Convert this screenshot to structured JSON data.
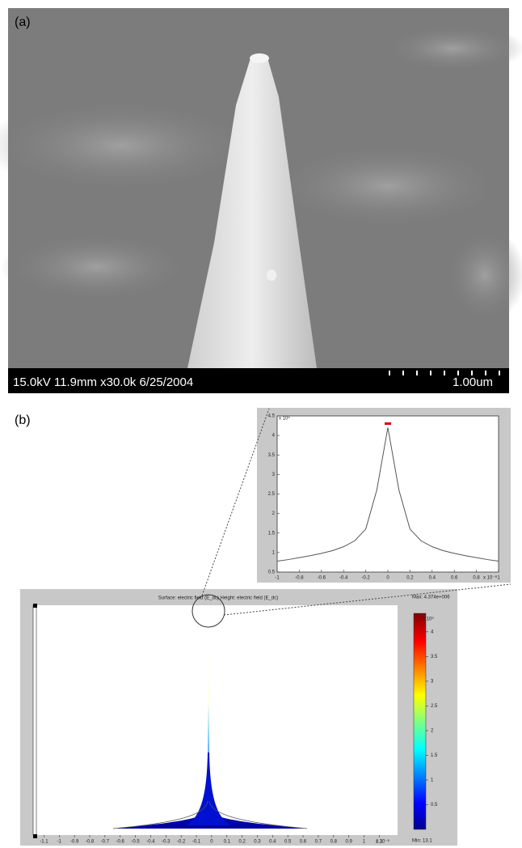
{
  "panel_a": {
    "label": "(a)",
    "info": "15.0kV 11.9mm x30.0k 6/25/2004",
    "scale": "1.00um"
  },
  "panel_b": {
    "label": "(b)",
    "inset": {
      "type": "line",
      "x": [
        -1,
        -0.9,
        -0.8,
        -0.7,
        -0.6,
        -0.5,
        -0.4,
        -0.3,
        -0.2,
        -0.1,
        0,
        0.1,
        0.2,
        0.3,
        0.4,
        0.5,
        0.6,
        0.7,
        0.8,
        0.9,
        1
      ],
      "values": [
        0.78,
        0.82,
        0.87,
        0.92,
        0.98,
        1.05,
        1.15,
        1.3,
        1.6,
        2.6,
        4.2,
        2.6,
        1.6,
        1.3,
        1.15,
        1.05,
        0.98,
        0.92,
        0.87,
        0.82,
        0.78
      ],
      "color": "#555555",
      "xlim": [
        -1,
        1
      ],
      "ylim": [
        0.5,
        4.5
      ],
      "xticks": [
        -1,
        -0.8,
        -0.6,
        -0.4,
        -0.2,
        0,
        0.2,
        0.4,
        0.6,
        0.8,
        1
      ],
      "yticks": [
        0.5,
        1,
        1.5,
        2,
        2.5,
        3,
        3.5,
        4,
        4.5
      ],
      "x_exponent": "x 10⁻⁸",
      "y_exponent": "x 10⁶"
    },
    "main": {
      "title": "Surface: electric field (E_dc)  Height: electric field (E_dc)",
      "max": "Max: 4.374e+006",
      "min": "Min: 13.1",
      "xlim": [
        -1.15,
        1.22
      ],
      "xticks": [
        -1.1,
        -1,
        -0.9,
        -0.8,
        -0.7,
        -0.6,
        -0.5,
        -0.4,
        -0.3,
        -0.2,
        -0.1,
        0,
        0.1,
        0.2,
        0.3,
        0.4,
        0.5,
        0.6,
        0.7,
        0.8,
        0.9,
        1,
        1.1
      ],
      "x_exponent": "x 10⁻⁶",
      "colorbar": {
        "ylim": [
          0,
          4.374
        ],
        "yticks": [
          0.5,
          1,
          1.5,
          2,
          2.5,
          3,
          3.5,
          4
        ],
        "exponent": "x 10⁶"
      }
    }
  }
}
